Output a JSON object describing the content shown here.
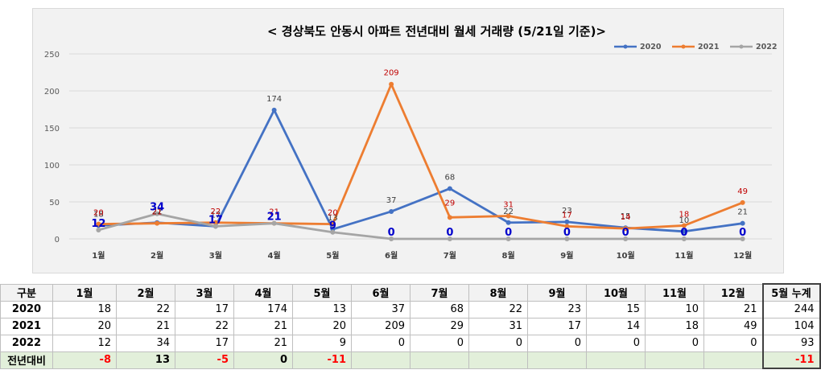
{
  "chart_data": {
    "type": "line",
    "title": "< 경상북도 안동시  아파트 전년대비 월세 거래량 (5/21일 기준)>",
    "categories": [
      "1월",
      "2월",
      "3월",
      "4월",
      "5월",
      "6월",
      "7월",
      "8월",
      "9월",
      "10월",
      "11월",
      "12월"
    ],
    "series": [
      {
        "name": "2020",
        "color": "#4472c4",
        "values": [
          18,
          22,
          17,
          174,
          13,
          37,
          68,
          22,
          23,
          15,
          10,
          21
        ]
      },
      {
        "name": "2021",
        "color": "#ed7d31",
        "values": [
          20,
          21,
          22,
          21,
          20,
          209,
          29,
          31,
          17,
          14,
          18,
          49
        ]
      },
      {
        "name": "2022",
        "color": "#a5a5a5",
        "values": [
          12,
          34,
          17,
          21,
          9,
          0,
          0,
          0,
          0,
          0,
          0,
          0
        ]
      }
    ],
    "ylim": [
      0,
      250
    ],
    "yticks": [
      0,
      50,
      100,
      150,
      200,
      250
    ],
    "grid": true,
    "legend": "top-right"
  },
  "table": {
    "header": [
      "구분",
      "1월",
      "2월",
      "3월",
      "4월",
      "5월",
      "6월",
      "7월",
      "8월",
      "9월",
      "10월",
      "11월",
      "12월",
      "5월 누계"
    ],
    "rows": [
      {
        "label": "2020",
        "values": [
          "18",
          "22",
          "17",
          "174",
          "13",
          "37",
          "68",
          "22",
          "23",
          "15",
          "10",
          "21",
          "244"
        ]
      },
      {
        "label": "2021",
        "values": [
          "20",
          "21",
          "22",
          "21",
          "20",
          "209",
          "29",
          "31",
          "17",
          "14",
          "18",
          "49",
          "104"
        ]
      },
      {
        "label": "2022",
        "values": [
          "12",
          "34",
          "17",
          "21",
          "9",
          "0",
          "0",
          "0",
          "0",
          "0",
          "0",
          "0",
          "93"
        ]
      },
      {
        "label": "전년대비",
        "values": [
          "-8",
          "13",
          "-5",
          "0",
          "-11",
          "",
          "",
          "",
          "",
          "",
          "",
          "",
          "-11"
        ]
      }
    ]
  }
}
